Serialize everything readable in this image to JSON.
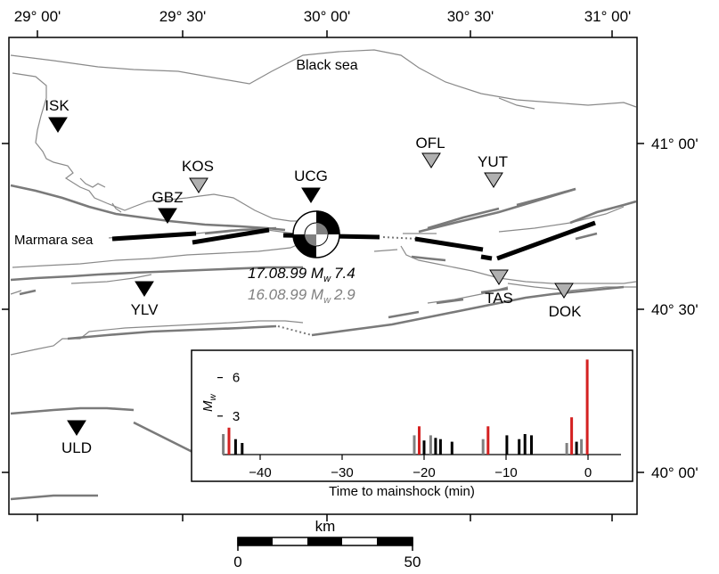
{
  "map": {
    "lon_labels": [
      "29° 00'",
      "29° 30'",
      "30° 00'",
      "30° 30'",
      "31° 00'"
    ],
    "lat_labels": [
      "41° 00'",
      "40° 30'",
      "40° 00'"
    ],
    "sea_labels": {
      "black_sea": "Black sea",
      "marmara_sea": "Marmara sea"
    },
    "stations": [
      {
        "code": "ISK",
        "color": "#000000"
      },
      {
        "code": "KOS",
        "color": "#b0b0b0"
      },
      {
        "code": "GBZ",
        "color": "#000000"
      },
      {
        "code": "UCG",
        "color": "#000000"
      },
      {
        "code": "OFL",
        "color": "#b0b0b0"
      },
      {
        "code": "YUT",
        "color": "#b0b0b0"
      },
      {
        "code": "YLV",
        "color": "#000000"
      },
      {
        "code": "TAS",
        "color": "#b0b0b0"
      },
      {
        "code": "DOK",
        "color": "#b0b0b0"
      },
      {
        "code": "ULD",
        "color": "#000000"
      }
    ],
    "events": {
      "mainshock": {
        "date": "17.08.99",
        "magnitude": "7.4",
        "color": "#000000"
      },
      "foreshock": {
        "date": "16.08.99",
        "magnitude": "2.9",
        "color": "#808080"
      },
      "magnitude_symbol": "M",
      "magnitude_subscript": "w"
    },
    "scale_bar": {
      "unit": "km",
      "min_label": "0",
      "max_label": "50"
    },
    "colors": {
      "fault": "#000000",
      "coast": "#8a8a8a",
      "red": "#d42020",
      "gray": "#808080"
    }
  },
  "chart_data": {
    "type": "bar",
    "xlabel": "Time to mainshock (min)",
    "ylabel": "Mw",
    "xlim": [
      -48,
      4
    ],
    "ylim": [
      0,
      8
    ],
    "xticks": [
      -40,
      -30,
      -20,
      -10,
      0
    ],
    "yticks": [
      3,
      6
    ],
    "series": [
      {
        "color": "#808080",
        "points": [
          [
            -44.5,
            1.6
          ],
          [
            -21.2,
            1.5
          ],
          [
            -19.2,
            1.5
          ],
          [
            -12.8,
            1.2
          ],
          [
            -2.6,
            0.9
          ],
          [
            -0.8,
            1.2
          ]
        ]
      },
      {
        "color": "#d42020",
        "points": [
          [
            -43.8,
            2.1
          ],
          [
            -20.6,
            2.2
          ],
          [
            -12.2,
            2.2
          ],
          [
            -2.0,
            2.9
          ],
          [
            -0.1,
            7.4
          ]
        ]
      },
      {
        "color": "#000000",
        "points": [
          [
            -43.0,
            1.2
          ],
          [
            -42.2,
            0.9
          ],
          [
            -20.0,
            1.1
          ],
          [
            -18.6,
            1.3
          ],
          [
            -18.0,
            1.2
          ],
          [
            -16.6,
            1.0
          ],
          [
            -9.9,
            1.5
          ],
          [
            -8.4,
            1.2
          ],
          [
            -7.7,
            1.6
          ],
          [
            -6.9,
            1.5
          ],
          [
            -1.4,
            1.0
          ]
        ]
      }
    ]
  }
}
